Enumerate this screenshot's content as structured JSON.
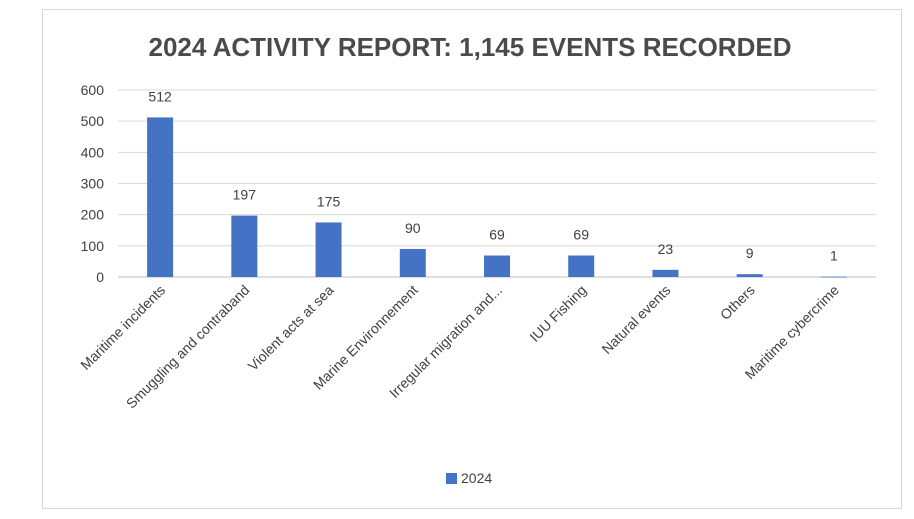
{
  "chart_data": {
    "type": "bar",
    "title": "2024 ACTIVITY REPORT: 1,145 EVENTS RECORDED",
    "categories": [
      "Maritime incidents",
      "Smuggling and contraband",
      "Violent acts at sea",
      "Marine Environnement",
      "Irregular migration and...",
      "IUU Fishing",
      "Natural events",
      "Others",
      "Maritime cybercrime"
    ],
    "series": [
      {
        "name": "2024",
        "values": [
          512,
          197,
          175,
          90,
          69,
          69,
          23,
          9,
          1
        ],
        "color": "#4472c4"
      }
    ],
    "ylim": [
      0,
      600
    ],
    "yticks": [
      0,
      100,
      200,
      300,
      400,
      500,
      600
    ],
    "grid": true,
    "legend_position": "bottom"
  }
}
